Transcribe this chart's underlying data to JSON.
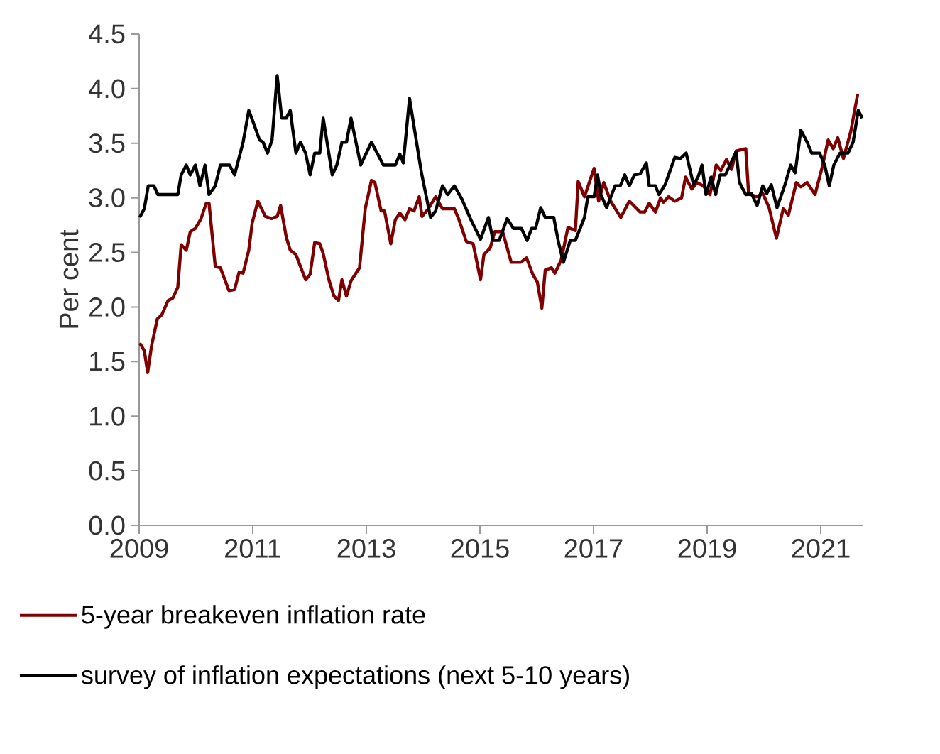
{
  "chart_data": {
    "type": "line",
    "ylabel": "Per cent",
    "xlim": [
      2009,
      2021.75
    ],
    "xticks": [
      2009,
      2011,
      2013,
      2015,
      2017,
      2019,
      2021
    ],
    "ylim": [
      0,
      4.5
    ],
    "yticks": [
      {
        "value": 0,
        "label": "0.0"
      },
      {
        "value": 0.5,
        "label": "0.5"
      },
      {
        "value": 1,
        "label": "1.0"
      },
      {
        "value": 1.5,
        "label": "1.5"
      },
      {
        "value": 2,
        "label": "2.0"
      },
      {
        "value": 2.5,
        "label": "2.5"
      },
      {
        "value": 3,
        "label": "3.0"
      },
      {
        "value": 3.5,
        "label": "3.5"
      },
      {
        "value": 4,
        "label": "4.0"
      },
      {
        "value": 4.5,
        "label": "4.5"
      }
    ],
    "legend": "bottom",
    "grid": false,
    "marker": "none",
    "line_style": "solid",
    "series": [
      {
        "name": "5-year breakeven inflation rate",
        "color": "#7f0000",
        "x": [
          2009.01,
          2009.09,
          2009.15,
          2009.22,
          2009.32,
          2009.4,
          2009.51,
          2009.59,
          2009.68,
          2009.74,
          2009.83,
          2009.9,
          2009.99,
          2010.09,
          2010.18,
          2010.23,
          2010.34,
          2010.43,
          2010.58,
          2010.68,
          2010.76,
          2010.83,
          2010.93,
          2010.99,
          2011.09,
          2011.22,
          2011.33,
          2011.43,
          2011.49,
          2011.59,
          2011.66,
          2011.76,
          2011.93,
          2012.01,
          2012.09,
          2012.18,
          2012.24,
          2012.34,
          2012.43,
          2012.51,
          2012.57,
          2012.65,
          2012.73,
          2012.88,
          2012.98,
          2013.09,
          2013.15,
          2013.26,
          2013.32,
          2013.43,
          2013.51,
          2013.59,
          2013.68,
          2013.76,
          2013.84,
          2013.93,
          2013.98,
          2014.09,
          2014.22,
          2014.34,
          2014.47,
          2014.55,
          2014.63,
          2014.76,
          2014.88,
          2015.01,
          2015.07,
          2015.18,
          2015.26,
          2015.4,
          2015.55,
          2015.72,
          2015.82,
          2015.93,
          2016.01,
          2016.09,
          2016.15,
          2016.26,
          2016.32,
          2016.43,
          2016.55,
          2016.68,
          2016.73,
          2016.84,
          2017.01,
          2017.09,
          2017.18,
          2017.3,
          2017.48,
          2017.63,
          2017.82,
          2017.9,
          2017.98,
          2018.09,
          2018.18,
          2018.23,
          2018.32,
          2018.43,
          2018.55,
          2018.62,
          2018.73,
          2018.82,
          2018.93,
          2019.05,
          2019.16,
          2019.24,
          2019.34,
          2019.43,
          2019.51,
          2019.68,
          2019.73,
          2019.87,
          2019.98,
          2020.09,
          2020.22,
          2020.34,
          2020.43,
          2020.57,
          2020.65,
          2020.76,
          2020.9,
          2021.03,
          2021.13,
          2021.22,
          2021.3,
          2021.4,
          2021.53,
          2021.65
        ],
        "values": [
          1.67,
          1.6,
          1.4,
          1.65,
          1.89,
          1.93,
          2.06,
          2.08,
          2.18,
          2.57,
          2.52,
          2.69,
          2.72,
          2.81,
          2.95,
          2.95,
          2.37,
          2.36,
          2.15,
          2.16,
          2.32,
          2.31,
          2.52,
          2.77,
          2.97,
          2.83,
          2.81,
          2.83,
          2.93,
          2.64,
          2.52,
          2.48,
          2.25,
          2.3,
          2.59,
          2.58,
          2.49,
          2.25,
          2.1,
          2.06,
          2.25,
          2.1,
          2.24,
          2.36,
          2.9,
          3.16,
          3.14,
          2.88,
          2.88,
          2.58,
          2.8,
          2.86,
          2.8,
          2.9,
          2.88,
          3.01,
          2.83,
          2.9,
          3.01,
          2.9,
          2.9,
          2.9,
          2.8,
          2.6,
          2.58,
          2.25,
          2.48,
          2.54,
          2.69,
          2.69,
          2.41,
          2.41,
          2.45,
          2.3,
          2.23,
          1.99,
          2.34,
          2.36,
          2.31,
          2.43,
          2.73,
          2.7,
          3.15,
          3.01,
          3.27,
          2.97,
          3.14,
          2.97,
          2.82,
          2.97,
          2.87,
          2.87,
          2.95,
          2.87,
          3.0,
          2.96,
          3.01,
          2.97,
          3.0,
          3.19,
          3.08,
          3.14,
          3.11,
          3.03,
          3.3,
          3.25,
          3.35,
          3.26,
          3.43,
          3.45,
          3.04,
          3.01,
          3.04,
          2.91,
          2.63,
          2.9,
          2.84,
          3.14,
          3.1,
          3.14,
          3.03,
          3.29,
          3.53,
          3.45,
          3.55,
          3.36,
          3.61,
          3.95
        ]
      },
      {
        "name": "survey of inflation expectations (next 5-10 years)",
        "color": "#000000",
        "x": [
          2009.01,
          2009.09,
          2009.16,
          2009.26,
          2009.33,
          2009.68,
          2009.74,
          2009.83,
          2009.9,
          2009.99,
          2010.07,
          2010.16,
          2010.23,
          2010.34,
          2010.43,
          2010.59,
          2010.68,
          2010.83,
          2010.93,
          2011.01,
          2011.12,
          2011.18,
          2011.26,
          2011.34,
          2011.43,
          2011.51,
          2011.59,
          2011.66,
          2011.76,
          2011.84,
          2011.93,
          2012.01,
          2012.09,
          2012.18,
          2012.24,
          2012.4,
          2012.48,
          2012.57,
          2012.65,
          2012.73,
          2012.9,
          2013.09,
          2013.3,
          2013.51,
          2013.59,
          2013.65,
          2013.76,
          2013.97,
          2014.13,
          2014.22,
          2014.34,
          2014.43,
          2014.55,
          2014.68,
          2014.84,
          2015.01,
          2015.15,
          2015.23,
          2015.34,
          2015.48,
          2015.59,
          2015.73,
          2015.83,
          2015.91,
          2015.98,
          2016.07,
          2016.15,
          2016.3,
          2016.38,
          2016.47,
          2016.59,
          2016.68,
          2016.84,
          2016.9,
          2017.01,
          2017.07,
          2017.13,
          2017.23,
          2017.38,
          2017.47,
          2017.55,
          2017.63,
          2017.72,
          2017.82,
          2017.93,
          2017.98,
          2018.09,
          2018.15,
          2018.26,
          2018.43,
          2018.53,
          2018.63,
          2018.76,
          2018.84,
          2018.91,
          2018.98,
          2019.07,
          2019.15,
          2019.23,
          2019.32,
          2019.51,
          2019.57,
          2019.68,
          2019.78,
          2019.88,
          2019.98,
          2020.05,
          2020.13,
          2020.23,
          2020.37,
          2020.47,
          2020.55,
          2020.65,
          2020.76,
          2020.84,
          2020.98,
          2021.07,
          2021.15,
          2021.23,
          2021.34,
          2021.48,
          2021.57,
          2021.66,
          2021.73
        ],
        "values": [
          2.82,
          2.9,
          3.11,
          3.11,
          3.03,
          3.03,
          3.21,
          3.3,
          3.21,
          3.3,
          3.11,
          3.3,
          3.03,
          3.11,
          3.3,
          3.3,
          3.21,
          3.51,
          3.8,
          3.69,
          3.53,
          3.51,
          3.41,
          3.53,
          4.12,
          3.73,
          3.73,
          3.8,
          3.41,
          3.51,
          3.41,
          3.21,
          3.41,
          3.41,
          3.73,
          3.21,
          3.3,
          3.51,
          3.51,
          3.73,
          3.3,
          3.51,
          3.3,
          3.3,
          3.4,
          3.32,
          3.91,
          3.23,
          2.82,
          2.88,
          3.11,
          3.03,
          3.11,
          2.99,
          2.8,
          2.62,
          2.82,
          2.61,
          2.61,
          2.81,
          2.72,
          2.72,
          2.61,
          2.72,
          2.72,
          2.91,
          2.82,
          2.82,
          2.6,
          2.41,
          2.61,
          2.61,
          2.82,
          3.01,
          3.01,
          3.21,
          3.03,
          2.91,
          3.11,
          3.11,
          3.21,
          3.11,
          3.21,
          3.22,
          3.32,
          3.11,
          3.11,
          3.03,
          3.12,
          3.37,
          3.36,
          3.41,
          3.12,
          3.19,
          3.3,
          3.03,
          3.19,
          3.03,
          3.21,
          3.21,
          3.42,
          3.14,
          3.03,
          3.04,
          2.93,
          3.11,
          3.04,
          3.12,
          2.91,
          3.12,
          3.3,
          3.23,
          3.62,
          3.51,
          3.41,
          3.41,
          3.3,
          3.11,
          3.3,
          3.41,
          3.41,
          3.51,
          3.8,
          3.73
        ]
      }
    ]
  }
}
